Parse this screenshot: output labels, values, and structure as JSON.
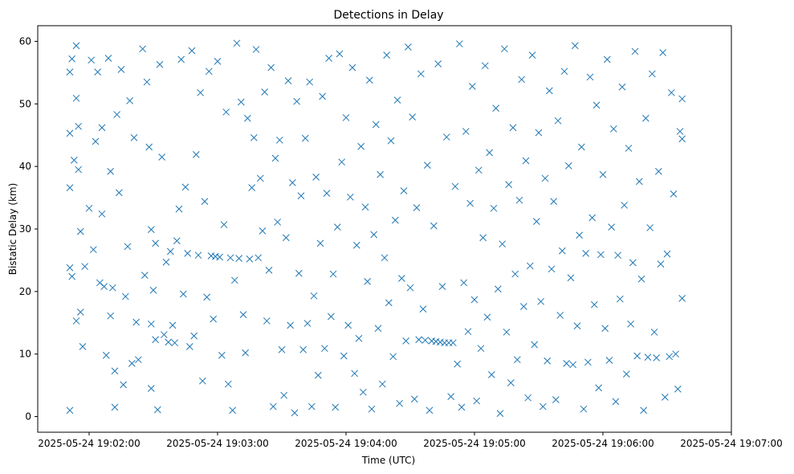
{
  "chart_data": {
    "type": "scatter",
    "title": "Detections in Delay",
    "xlabel": "Time (UTC)",
    "ylabel": "Bistatic Delay (km)",
    "marker": "x",
    "color": "#1f77b4",
    "grid": false,
    "xlim": [
      "2025-05-24 19:01:36",
      "2025-05-24 19:07:00"
    ],
    "ylim": [
      -2.5,
      62.5
    ],
    "x_ticks": [
      "2025-05-24 19:02:00",
      "2025-05-24 19:03:00",
      "2025-05-24 19:04:00",
      "2025-05-24 19:05:00",
      "2025-05-24 19:06:00",
      "2025-05-24 19:07:00"
    ],
    "y_ticks": [
      "0",
      "10",
      "20",
      "30",
      "40",
      "50",
      "60"
    ],
    "points": [
      [
        "2025-05-24 19:01:51",
        1
      ],
      [
        "2025-05-24 19:01:51",
        23.8
      ],
      [
        "2025-05-24 19:01:51",
        36.6
      ],
      [
        "2025-05-24 19:01:51",
        45.3
      ],
      [
        "2025-05-24 19:01:51",
        55.1
      ],
      [
        "2025-05-24 19:01:52",
        57.2
      ],
      [
        "2025-05-24 19:01:52",
        22.4
      ],
      [
        "2025-05-24 19:01:53",
        41
      ],
      [
        "2025-05-24 19:01:54",
        15.3
      ],
      [
        "2025-05-24 19:01:54",
        59.3
      ],
      [
        "2025-05-24 19:01:54",
        50.9
      ],
      [
        "2025-05-24 19:01:55",
        46.4
      ],
      [
        "2025-05-24 19:01:55",
        39.5
      ],
      [
        "2025-05-24 19:01:56",
        16.7
      ],
      [
        "2025-05-24 19:01:56",
        29.6
      ],
      [
        "2025-05-24 19:01:57",
        11.2
      ],
      [
        "2025-05-24 19:01:58",
        24
      ],
      [
        "2025-05-24 19:02:00",
        33.3
      ],
      [
        "2025-05-24 19:02:01",
        57
      ],
      [
        "2025-05-24 19:02:02",
        26.7
      ],
      [
        "2025-05-24 19:02:03",
        44
      ],
      [
        "2025-05-24 19:02:04",
        55.1
      ],
      [
        "2025-05-24 19:02:05",
        21.4
      ],
      [
        "2025-05-24 19:02:06",
        32.4
      ],
      [
        "2025-05-24 19:02:06",
        46.2
      ],
      [
        "2025-05-24 19:02:07",
        20.8
      ],
      [
        "2025-05-24 19:02:08",
        9.8
      ],
      [
        "2025-05-24 19:02:09",
        57.3
      ],
      [
        "2025-05-24 19:02:10",
        39.2
      ],
      [
        "2025-05-24 19:02:10",
        16.1
      ],
      [
        "2025-05-24 19:02:11",
        20.6
      ],
      [
        "2025-05-24 19:02:12",
        7.3
      ],
      [
        "2025-05-24 19:02:12",
        1.5
      ],
      [
        "2025-05-24 19:02:13",
        48.3
      ],
      [
        "2025-05-24 19:02:14",
        35.8
      ],
      [
        "2025-05-24 19:02:15",
        55.5
      ],
      [
        "2025-05-24 19:02:16",
        5.1
      ],
      [
        "2025-05-24 19:02:17",
        19.2
      ],
      [
        "2025-05-24 19:02:18",
        27.2
      ],
      [
        "2025-05-24 19:02:19",
        50.5
      ],
      [
        "2025-05-24 19:02:20",
        8.5
      ],
      [
        "2025-05-24 19:02:21",
        44.6
      ],
      [
        "2025-05-24 19:02:22",
        15.1
      ],
      [
        "2025-05-24 19:02:23",
        9.1
      ],
      [
        "2025-05-24 19:02:25",
        58.8
      ],
      [
        "2025-05-24 19:02:26",
        22.6
      ],
      [
        "2025-05-24 19:02:27",
        53.5
      ],
      [
        "2025-05-24 19:02:28",
        43.1
      ],
      [
        "2025-05-24 19:02:29",
        29.9
      ],
      [
        "2025-05-24 19:02:29",
        14.8
      ],
      [
        "2025-05-24 19:02:29",
        4.5
      ],
      [
        "2025-05-24 19:02:30",
        20.2
      ],
      [
        "2025-05-24 19:02:31",
        27.7
      ],
      [
        "2025-05-24 19:02:31",
        12.3
      ],
      [
        "2025-05-24 19:02:32",
        1.1
      ],
      [
        "2025-05-24 19:02:33",
        56.3
      ],
      [
        "2025-05-24 19:02:34",
        41.5
      ],
      [
        "2025-05-24 19:02:35",
        13.1
      ],
      [
        "2025-05-24 19:02:36",
        24.7
      ],
      [
        "2025-05-24 19:02:37",
        11.9
      ],
      [
        "2025-05-24 19:02:38",
        26.4
      ],
      [
        "2025-05-24 19:02:39",
        14.6
      ],
      [
        "2025-05-24 19:02:40",
        11.8
      ],
      [
        "2025-05-24 19:02:41",
        28.1
      ],
      [
        "2025-05-24 19:02:42",
        33.2
      ],
      [
        "2025-05-24 19:02:43",
        57.1
      ],
      [
        "2025-05-24 19:02:44",
        19.6
      ],
      [
        "2025-05-24 19:02:45",
        36.7
      ],
      [
        "2025-05-24 19:02:46",
        26.1
      ],
      [
        "2025-05-24 19:02:47",
        11.2
      ],
      [
        "2025-05-24 19:02:48",
        58.5
      ],
      [
        "2025-05-24 19:02:49",
        12.9
      ],
      [
        "2025-05-24 19:02:50",
        41.9
      ],
      [
        "2025-05-24 19:02:51",
        25.8
      ],
      [
        "2025-05-24 19:02:52",
        51.8
      ],
      [
        "2025-05-24 19:02:53",
        5.7
      ],
      [
        "2025-05-24 19:02:54",
        34.4
      ],
      [
        "2025-05-24 19:02:55",
        19.1
      ],
      [
        "2025-05-24 19:02:56",
        55.2
      ],
      [
        "2025-05-24 19:02:57",
        25.7
      ],
      [
        "2025-05-24 19:02:58",
        15.6
      ],
      [
        "2025-05-24 19:02:59",
        25.6
      ],
      [
        "2025-05-24 19:03:00",
        56.8
      ],
      [
        "2025-05-24 19:03:01",
        25.5
      ],
      [
        "2025-05-24 19:03:02",
        9.8
      ],
      [
        "2025-05-24 19:03:03",
        30.7
      ],
      [
        "2025-05-24 19:03:04",
        48.7
      ],
      [
        "2025-05-24 19:03:05",
        5.2
      ],
      [
        "2025-05-24 19:03:06",
        25.4
      ],
      [
        "2025-05-24 19:03:07",
        1
      ],
      [
        "2025-05-24 19:03:08",
        21.8
      ],
      [
        "2025-05-24 19:03:09",
        59.7
      ],
      [
        "2025-05-24 19:03:10",
        25.3
      ],
      [
        "2025-05-24 19:03:11",
        50.3
      ],
      [
        "2025-05-24 19:03:12",
        16.3
      ],
      [
        "2025-05-24 19:03:13",
        10.2
      ],
      [
        "2025-05-24 19:03:14",
        47.7
      ],
      [
        "2025-05-24 19:03:15",
        25.2
      ],
      [
        "2025-05-24 19:03:16",
        36.6
      ],
      [
        "2025-05-24 19:03:17",
        44.6
      ],
      [
        "2025-05-24 19:03:18",
        58.7
      ],
      [
        "2025-05-24 19:03:19",
        25.4
      ],
      [
        "2025-05-24 19:03:20",
        38.1
      ],
      [
        "2025-05-24 19:03:21",
        29.7
      ],
      [
        "2025-05-24 19:03:22",
        51.9
      ],
      [
        "2025-05-24 19:03:23",
        15.3
      ],
      [
        "2025-05-24 19:03:24",
        23.4
      ],
      [
        "2025-05-24 19:03:25",
        55.8
      ],
      [
        "2025-05-24 19:03:26",
        1.6
      ],
      [
        "2025-05-24 19:03:27",
        41.3
      ],
      [
        "2025-05-24 19:03:28",
        31.1
      ],
      [
        "2025-05-24 19:03:29",
        44.2
      ],
      [
        "2025-05-24 19:03:30",
        10.7
      ],
      [
        "2025-05-24 19:03:31",
        3.4
      ],
      [
        "2025-05-24 19:03:32",
        28.6
      ],
      [
        "2025-05-24 19:03:33",
        53.7
      ],
      [
        "2025-05-24 19:03:34",
        14.6
      ],
      [
        "2025-05-24 19:03:35",
        37.4
      ],
      [
        "2025-05-24 19:03:36",
        0.6
      ],
      [
        "2025-05-24 19:03:37",
        50.4
      ],
      [
        "2025-05-24 19:03:38",
        22.9
      ],
      [
        "2025-05-24 19:03:39",
        35.3
      ],
      [
        "2025-05-24 19:03:40",
        10.7
      ],
      [
        "2025-05-24 19:03:41",
        44.5
      ],
      [
        "2025-05-24 19:03:42",
        14.9
      ],
      [
        "2025-05-24 19:03:43",
        53.5
      ],
      [
        "2025-05-24 19:03:44",
        1.6
      ],
      [
        "2025-05-24 19:03:45",
        19.3
      ],
      [
        "2025-05-24 19:03:46",
        38.3
      ],
      [
        "2025-05-24 19:03:47",
        6.6
      ],
      [
        "2025-05-24 19:03:48",
        27.7
      ],
      [
        "2025-05-24 19:03:49",
        51.2
      ],
      [
        "2025-05-24 19:03:50",
        10.9
      ],
      [
        "2025-05-24 19:03:51",
        35.7
      ],
      [
        "2025-05-24 19:03:52",
        57.3
      ],
      [
        "2025-05-24 19:03:53",
        16
      ],
      [
        "2025-05-24 19:03:54",
        22.8
      ],
      [
        "2025-05-24 19:03:55",
        1.5
      ],
      [
        "2025-05-24 19:03:56",
        30.3
      ],
      [
        "2025-05-24 19:03:57",
        58
      ],
      [
        "2025-05-24 19:03:58",
        40.7
      ],
      [
        "2025-05-24 19:03:59",
        9.7
      ],
      [
        "2025-05-24 19:04:00",
        47.8
      ],
      [
        "2025-05-24 19:04:01",
        14.6
      ],
      [
        "2025-05-24 19:04:02",
        35.1
      ],
      [
        "2025-05-24 19:04:03",
        55.8
      ],
      [
        "2025-05-24 19:04:04",
        6.9
      ],
      [
        "2025-05-24 19:04:05",
        27.4
      ],
      [
        "2025-05-24 19:04:06",
        12.5
      ],
      [
        "2025-05-24 19:04:07",
        43.2
      ],
      [
        "2025-05-24 19:04:08",
        3.9
      ],
      [
        "2025-05-24 19:04:09",
        33.5
      ],
      [
        "2025-05-24 19:04:10",
        21.6
      ],
      [
        "2025-05-24 19:04:11",
        53.8
      ],
      [
        "2025-05-24 19:04:12",
        1.2
      ],
      [
        "2025-05-24 19:04:13",
        29.1
      ],
      [
        "2025-05-24 19:04:14",
        46.7
      ],
      [
        "2025-05-24 19:04:15",
        14.1
      ],
      [
        "2025-05-24 19:04:16",
        38.7
      ],
      [
        "2025-05-24 19:04:17",
        5.2
      ],
      [
        "2025-05-24 19:04:18",
        25.4
      ],
      [
        "2025-05-24 19:04:19",
        57.8
      ],
      [
        "2025-05-24 19:04:20",
        18.2
      ],
      [
        "2025-05-24 19:04:21",
        44.1
      ],
      [
        "2025-05-24 19:04:22",
        9.6
      ],
      [
        "2025-05-24 19:04:23",
        31.4
      ],
      [
        "2025-05-24 19:04:24",
        50.6
      ],
      [
        "2025-05-24 19:04:25",
        2.1
      ],
      [
        "2025-05-24 19:04:26",
        22.1
      ],
      [
        "2025-05-24 19:04:27",
        36.1
      ],
      [
        "2025-05-24 19:04:28",
        12.1
      ],
      [
        "2025-05-24 19:04:29",
        59.1
      ],
      [
        "2025-05-24 19:04:30",
        20.6
      ],
      [
        "2025-05-24 19:04:31",
        47.9
      ],
      [
        "2025-05-24 19:04:32",
        2.8
      ],
      [
        "2025-05-24 19:04:33",
        33.4
      ],
      [
        "2025-05-24 19:04:34",
        12.3
      ],
      [
        "2025-05-24 19:04:35",
        54.8
      ],
      [
        "2025-05-24 19:04:36",
        17.2
      ],
      [
        "2025-05-24 19:04:37",
        12.2
      ],
      [
        "2025-05-24 19:04:38",
        40.2
      ],
      [
        "2025-05-24 19:04:39",
        1
      ],
      [
        "2025-05-24 19:04:40",
        12.1
      ],
      [
        "2025-05-24 19:04:41",
        30.5
      ],
      [
        "2025-05-24 19:04:42",
        12
      ],
      [
        "2025-05-24 19:04:43",
        56.4
      ],
      [
        "2025-05-24 19:04:44",
        11.9
      ],
      [
        "2025-05-24 19:04:45",
        20.8
      ],
      [
        "2025-05-24 19:04:46",
        11.8
      ],
      [
        "2025-05-24 19:04:47",
        44.7
      ],
      [
        "2025-05-24 19:04:48",
        11.8
      ],
      [
        "2025-05-24 19:04:49",
        3.2
      ],
      [
        "2025-05-24 19:04:50",
        11.8
      ],
      [
        "2025-05-24 19:04:51",
        36.8
      ],
      [
        "2025-05-24 19:04:52",
        8.4
      ],
      [
        "2025-05-24 19:04:53",
        59.6
      ],
      [
        "2025-05-24 19:04:54",
        1.5
      ],
      [
        "2025-05-24 19:04:55",
        21.4
      ],
      [
        "2025-05-24 19:04:56",
        45.6
      ],
      [
        "2025-05-24 19:04:57",
        13.6
      ],
      [
        "2025-05-24 19:04:58",
        34.1
      ],
      [
        "2025-05-24 19:04:59",
        52.8
      ],
      [
        "2025-05-24 19:05:00",
        18.7
      ],
      [
        "2025-05-24 19:05:01",
        2.5
      ],
      [
        "2025-05-24 19:05:02",
        39.4
      ],
      [
        "2025-05-24 19:05:03",
        10.9
      ],
      [
        "2025-05-24 19:05:04",
        28.6
      ],
      [
        "2025-05-24 19:05:05",
        56.1
      ],
      [
        "2025-05-24 19:05:06",
        15.9
      ],
      [
        "2025-05-24 19:05:07",
        42.2
      ],
      [
        "2025-05-24 19:05:08",
        6.7
      ],
      [
        "2025-05-24 19:05:09",
        33.3
      ],
      [
        "2025-05-24 19:05:10",
        49.3
      ],
      [
        "2025-05-24 19:05:11",
        20.4
      ],
      [
        "2025-05-24 19:05:12",
        0.5
      ],
      [
        "2025-05-24 19:05:13",
        27.6
      ],
      [
        "2025-05-24 19:05:14",
        58.8
      ],
      [
        "2025-05-24 19:05:15",
        13.5
      ],
      [
        "2025-05-24 19:05:16",
        37.1
      ],
      [
        "2025-05-24 19:05:17",
        5.4
      ],
      [
        "2025-05-24 19:05:18",
        46.2
      ],
      [
        "2025-05-24 19:05:19",
        22.8
      ],
      [
        "2025-05-24 19:05:20",
        9.1
      ],
      [
        "2025-05-24 19:05:21",
        34.6
      ],
      [
        "2025-05-24 19:05:22",
        53.9
      ],
      [
        "2025-05-24 19:05:23",
        17.6
      ],
      [
        "2025-05-24 19:05:24",
        40.9
      ],
      [
        "2025-05-24 19:05:25",
        3
      ],
      [
        "2025-05-24 19:05:26",
        24.1
      ],
      [
        "2025-05-24 19:05:27",
        57.8
      ],
      [
        "2025-05-24 19:05:28",
        11.5
      ],
      [
        "2025-05-24 19:05:29",
        31.2
      ],
      [
        "2025-05-24 19:05:30",
        45.4
      ],
      [
        "2025-05-24 19:05:31",
        18.4
      ],
      [
        "2025-05-24 19:05:32",
        1.6
      ],
      [
        "2025-05-24 19:05:33",
        38.1
      ],
      [
        "2025-05-24 19:05:34",
        8.9
      ],
      [
        "2025-05-24 19:05:35",
        52.1
      ],
      [
        "2025-05-24 19:05:36",
        23.6
      ],
      [
        "2025-05-24 19:05:37",
        34.4
      ],
      [
        "2025-05-24 19:05:38",
        2.7
      ],
      [
        "2025-05-24 19:05:39",
        47.3
      ],
      [
        "2025-05-24 19:05:40",
        16.2
      ],
      [
        "2025-05-24 19:05:41",
        26.5
      ],
      [
        "2025-05-24 19:05:42",
        55.2
      ],
      [
        "2025-05-24 19:05:43",
        8.5
      ],
      [
        "2025-05-24 19:05:44",
        40.1
      ],
      [
        "2025-05-24 19:05:45",
        22.2
      ],
      [
        "2025-05-24 19:05:46",
        8.3
      ],
      [
        "2025-05-24 19:05:47",
        59.3
      ],
      [
        "2025-05-24 19:05:48",
        14.5
      ],
      [
        "2025-05-24 19:05:49",
        29
      ],
      [
        "2025-05-24 19:05:50",
        43.1
      ],
      [
        "2025-05-24 19:05:51",
        1.2
      ],
      [
        "2025-05-24 19:05:52",
        26.1
      ],
      [
        "2025-05-24 19:05:53",
        8.7
      ],
      [
        "2025-05-24 19:05:54",
        54.3
      ],
      [
        "2025-05-24 19:05:55",
        31.8
      ],
      [
        "2025-05-24 19:05:56",
        17.9
      ],
      [
        "2025-05-24 19:05:57",
        49.8
      ],
      [
        "2025-05-24 19:05:58",
        4.6
      ],
      [
        "2025-05-24 19:05:59",
        25.9
      ],
      [
        "2025-05-24 19:06:00",
        38.7
      ],
      [
        "2025-05-24 19:06:01",
        14.1
      ],
      [
        "2025-05-24 19:06:02",
        57.1
      ],
      [
        "2025-05-24 19:06:03",
        9
      ],
      [
        "2025-05-24 19:06:04",
        30.3
      ],
      [
        "2025-05-24 19:06:05",
        46
      ],
      [
        "2025-05-24 19:06:06",
        2.4
      ],
      [
        "2025-05-24 19:06:07",
        25.8
      ],
      [
        "2025-05-24 19:06:08",
        18.8
      ],
      [
        "2025-05-24 19:06:09",
        52.7
      ],
      [
        "2025-05-24 19:06:10",
        33.8
      ],
      [
        "2025-05-24 19:06:11",
        6.8
      ],
      [
        "2025-05-24 19:06:12",
        42.9
      ],
      [
        "2025-05-24 19:06:13",
        14.8
      ],
      [
        "2025-05-24 19:06:14",
        24.6
      ],
      [
        "2025-05-24 19:06:15",
        58.4
      ],
      [
        "2025-05-24 19:06:16",
        9.7
      ],
      [
        "2025-05-24 19:06:17",
        37.6
      ],
      [
        "2025-05-24 19:06:18",
        22
      ],
      [
        "2025-05-24 19:06:19",
        1
      ],
      [
        "2025-05-24 19:06:20",
        47.7
      ],
      [
        "2025-05-24 19:06:21",
        9.5
      ],
      [
        "2025-05-24 19:06:22",
        30.2
      ],
      [
        "2025-05-24 19:06:23",
        54.8
      ],
      [
        "2025-05-24 19:06:24",
        13.5
      ],
      [
        "2025-05-24 19:06:25",
        9.4
      ],
      [
        "2025-05-24 19:06:26",
        39.2
      ],
      [
        "2025-05-24 19:06:27",
        24.4
      ],
      [
        "2025-05-24 19:06:28",
        58.2
      ],
      [
        "2025-05-24 19:06:29",
        3.1
      ],
      [
        "2025-05-24 19:06:30",
        26
      ],
      [
        "2025-05-24 19:06:31",
        9.6
      ],
      [
        "2025-05-24 19:06:32",
        51.8
      ],
      [
        "2025-05-24 19:06:33",
        35.6
      ],
      [
        "2025-05-24 19:06:34",
        10
      ],
      [
        "2025-05-24 19:06:35",
        4.4
      ],
      [
        "2025-05-24 19:06:36",
        45.6
      ],
      [
        "2025-05-24 19:06:37",
        18.9
      ],
      [
        "2025-05-24 19:06:37",
        50.8
      ],
      [
        "2025-05-24 19:06:37",
        44.4
      ]
    ]
  }
}
